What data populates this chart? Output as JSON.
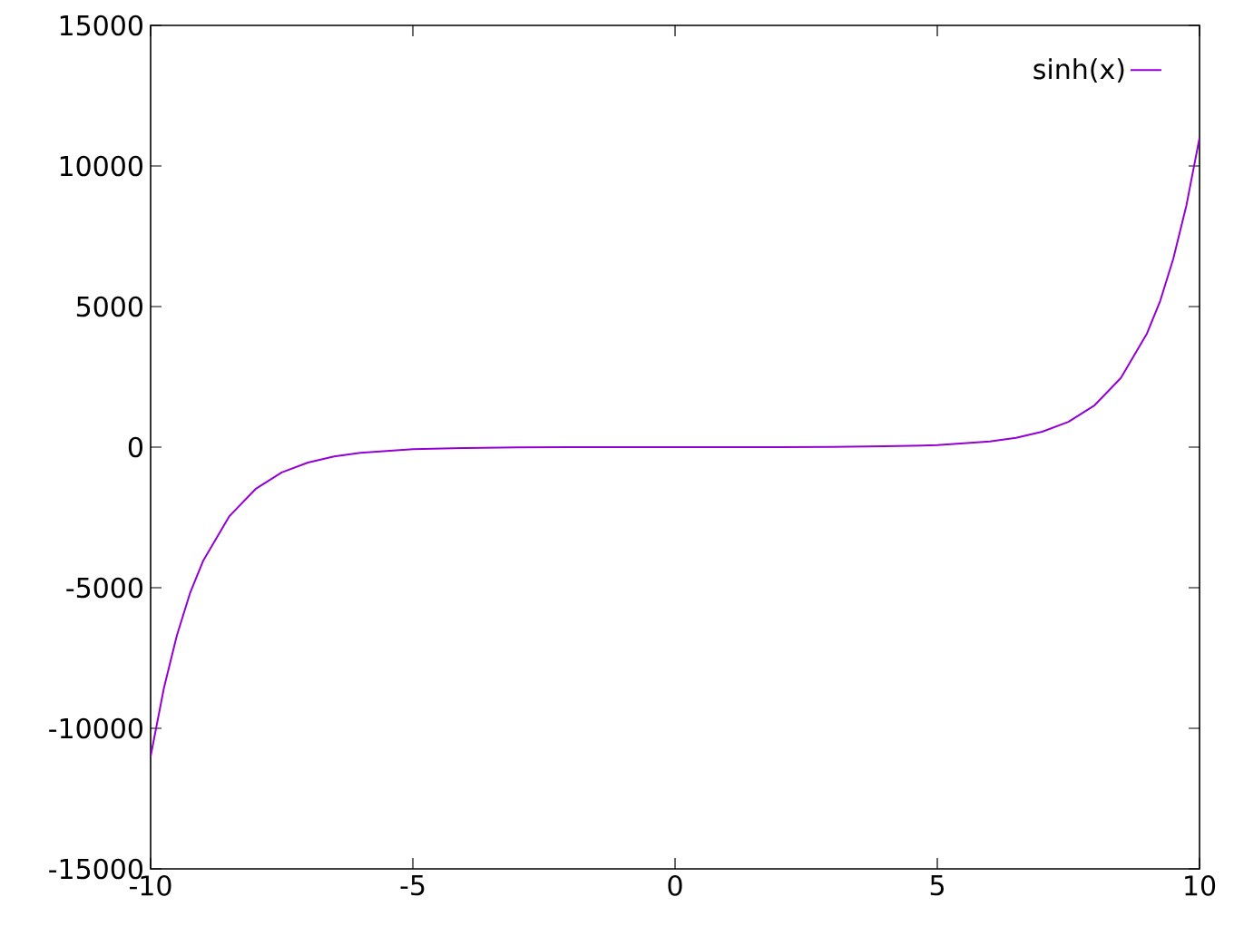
{
  "chart_data": {
    "type": "line",
    "xlim": [
      -10,
      10
    ],
    "ylim": [
      -15000,
      15000
    ],
    "xticks": [
      -10,
      -5,
      0,
      5,
      10
    ],
    "yticks": [
      -15000,
      -10000,
      -5000,
      0,
      5000,
      10000,
      15000
    ],
    "grid": false,
    "legend": "top right",
    "marker": "none",
    "line_style": "solid",
    "series": [
      {
        "name": "sinh(x)",
        "color": "#9400d3",
        "x": [
          -10,
          -9.75,
          -9.5,
          -9.25,
          -9,
          -8.5,
          -8,
          -7.5,
          -7,
          -6.5,
          -6,
          -5,
          -4,
          -3,
          -2,
          0,
          2,
          3,
          4,
          5,
          6,
          6.5,
          7,
          7.5,
          8,
          8.5,
          9,
          9.25,
          9.5,
          9.75,
          10
        ],
        "values": [
          -11000,
          -8600,
          -6700,
          -5200,
          -4050,
          -2460,
          -1490,
          -900,
          -550,
          -330,
          -200,
          -70,
          -30,
          -10,
          0,
          0,
          0,
          10,
          30,
          70,
          200,
          330,
          550,
          900,
          1490,
          2460,
          4050,
          5200,
          6700,
          8600,
          11000
        ]
      }
    ]
  }
}
